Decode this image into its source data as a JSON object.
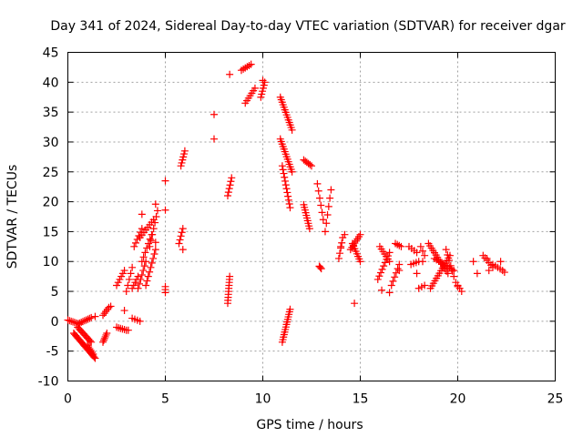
{
  "chart_data": {
    "type": "scatter",
    "title": "Day 341 of 2024, Sidereal Day-to-day VTEC variation (SDTVAR) for receiver dgar",
    "xlabel": "GPS time / hours",
    "ylabel": "SDTVAR / TECUs",
    "xlim": [
      0,
      25
    ],
    "ylim": [
      -10,
      45
    ],
    "xticks": [
      0,
      5,
      10,
      15,
      20,
      25
    ],
    "yticks": [
      -10,
      -5,
      0,
      5,
      10,
      15,
      20,
      25,
      30,
      35,
      40,
      45
    ],
    "grid": true,
    "marker": "+",
    "color": "#ff0000",
    "segments": [
      {
        "x": [
          0.0,
          0.6
        ],
        "y": [
          0.2,
          -0.5
        ],
        "n": 8
      },
      {
        "x": [
          0.3,
          1.4
        ],
        "y": [
          -2.0,
          -6.2
        ],
        "n": 22
      },
      {
        "x": [
          0.5,
          1.2
        ],
        "y": [
          -1.0,
          -3.5
        ],
        "n": 12
      },
      {
        "x": [
          0.6,
          1.2
        ],
        "y": [
          -0.3,
          0.6
        ],
        "n": 8
      },
      {
        "x": [
          1.0,
          1.3
        ],
        "y": [
          -4.0,
          -5.5
        ],
        "n": 6
      },
      {
        "x": [
          1.8,
          2.0
        ],
        "y": [
          -3.5,
          -2.0
        ],
        "n": 6
      },
      {
        "x": [
          1.8,
          2.1
        ],
        "y": [
          1.0,
          2.3
        ],
        "n": 5
      },
      {
        "x": [
          2.5,
          3.0
        ],
        "y": [
          -1.0,
          -1.5
        ],
        "n": 6
      },
      {
        "x": [
          2.5,
          2.9
        ],
        "y": [
          6.0,
          8.5
        ],
        "n": 6
      },
      {
        "x": [
          3.0,
          3.3
        ],
        "y": [
          5.0,
          9.0
        ],
        "n": 5
      },
      {
        "x": [
          3.3,
          3.7
        ],
        "y": [
          0.5,
          0.0
        ],
        "n": 4
      },
      {
        "x": [
          3.3,
          3.6
        ],
        "y": [
          5.5,
          7.5
        ],
        "n": 5
      },
      {
        "x": [
          3.4,
          3.8
        ],
        "y": [
          12.5,
          15.5
        ],
        "n": 6
      },
      {
        "x": [
          3.6,
          4.0
        ],
        "y": [
          5.5,
          10.0
        ],
        "n": 7
      },
      {
        "x": [
          3.7,
          4.4
        ],
        "y": [
          14.0,
          17.0
        ],
        "n": 8
      },
      {
        "x": [
          3.8,
          4.3
        ],
        "y": [
          10.0,
          14.5
        ],
        "n": 7
      },
      {
        "x": [
          4.0,
          4.5
        ],
        "y": [
          6.0,
          12.0
        ],
        "n": 9
      },
      {
        "x": [
          4.2,
          4.6
        ],
        "y": [
          12.5,
          18.5
        ],
        "n": 7
      },
      {
        "x": [
          5.0,
          5.0
        ],
        "y": [
          4.8,
          5.8
        ],
        "n": 3
      },
      {
        "x": [
          5.7,
          5.9
        ],
        "y": [
          13.0,
          15.5
        ],
        "n": 5
      },
      {
        "x": [
          5.8,
          6.0
        ],
        "y": [
          26.0,
          28.5
        ],
        "n": 6
      },
      {
        "x": [
          8.2,
          8.3
        ],
        "y": [
          3.0,
          7.5
        ],
        "n": 10
      },
      {
        "x": [
          8.2,
          8.4
        ],
        "y": [
          21.0,
          24.0
        ],
        "n": 6
      },
      {
        "x": [
          8.9,
          9.4
        ],
        "y": [
          42.0,
          43.0
        ],
        "n": 6
      },
      {
        "x": [
          9.1,
          9.6
        ],
        "y": [
          36.5,
          39.0
        ],
        "n": 7
      },
      {
        "x": [
          9.9,
          10.1
        ],
        "y": [
          37.5,
          40.0
        ],
        "n": 6
      },
      {
        "x": [
          10.9,
          11.5
        ],
        "y": [
          37.5,
          32.0
        ],
        "n": 14
      },
      {
        "x": [
          10.9,
          11.5
        ],
        "y": [
          30.5,
          25.0
        ],
        "n": 14
      },
      {
        "x": [
          11.0,
          11.4
        ],
        "y": [
          26.0,
          19.0
        ],
        "n": 12
      },
      {
        "x": [
          11.0,
          11.4
        ],
        "y": [
          -3.5,
          2.0
        ],
        "n": 14
      },
      {
        "x": [
          12.1,
          12.5
        ],
        "y": [
          27.0,
          26.0
        ],
        "n": 6
      },
      {
        "x": [
          12.1,
          12.4
        ],
        "y": [
          19.5,
          15.5
        ],
        "n": 10
      },
      {
        "x": [
          12.9,
          13.0
        ],
        "y": [
          9.2,
          8.8
        ],
        "n": 3
      },
      {
        "x": [
          12.8,
          13.1
        ],
        "y": [
          23.0,
          17.0
        ],
        "n": 6
      },
      {
        "x": [
          13.2,
          13.5
        ],
        "y": [
          15.0,
          22.0
        ],
        "n": 6
      },
      {
        "x": [
          13.9,
          14.1
        ],
        "y": [
          10.5,
          14.0
        ],
        "n": 5
      },
      {
        "x": [
          14.5,
          15.0
        ],
        "y": [
          12.0,
          14.5
        ],
        "n": 8
      },
      {
        "x": [
          14.6,
          15.0
        ],
        "y": [
          13.0,
          10.0
        ],
        "n": 8
      },
      {
        "x": [
          15.9,
          16.5
        ],
        "y": [
          7.0,
          11.5
        ],
        "n": 9
      },
      {
        "x": [
          16.0,
          16.5
        ],
        "y": [
          12.5,
          10.0
        ],
        "n": 7
      },
      {
        "x": [
          16.6,
          17.0
        ],
        "y": [
          6.0,
          9.5
        ],
        "n": 6
      },
      {
        "x": [
          16.8,
          17.1
        ],
        "y": [
          13.0,
          12.5
        ],
        "n": 4
      },
      {
        "x": [
          17.5,
          17.9
        ],
        "y": [
          12.5,
          11.5
        ],
        "n": 4
      },
      {
        "x": [
          17.6,
          18.0
        ],
        "y": [
          9.5,
          10.0
        ],
        "n": 4
      },
      {
        "x": [
          18.0,
          18.3
        ],
        "y": [
          5.5,
          6.0
        ],
        "n": 3
      },
      {
        "x": [
          18.1,
          18.3
        ],
        "y": [
          12.5,
          11.0
        ],
        "n": 3
      },
      {
        "x": [
          18.5,
          19.5
        ],
        "y": [
          13.0,
          8.0
        ],
        "n": 14
      },
      {
        "x": [
          18.6,
          19.6
        ],
        "y": [
          5.5,
          11.0
        ],
        "n": 14
      },
      {
        "x": [
          18.8,
          19.8
        ],
        "y": [
          10.5,
          8.5
        ],
        "n": 10
      },
      {
        "x": [
          19.4,
          19.8
        ],
        "y": [
          12.0,
          7.5
        ],
        "n": 6
      },
      {
        "x": [
          19.9,
          20.2
        ],
        "y": [
          6.5,
          5.0
        ],
        "n": 4
      },
      {
        "x": [
          21.3,
          21.8
        ],
        "y": [
          11.0,
          9.0
        ],
        "n": 6
      },
      {
        "x": [
          21.8,
          22.3
        ],
        "y": [
          9.5,
          8.5
        ],
        "n": 5
      }
    ],
    "points": [
      [
        1.4,
        0.8
      ],
      [
        2.2,
        2.5
      ],
      [
        2.9,
        1.8
      ],
      [
        3.1,
        -1.5
      ],
      [
        3.8,
        17.9
      ],
      [
        4.5,
        19.6
      ],
      [
        4.5,
        13.2
      ],
      [
        5.0,
        23.5
      ],
      [
        5.0,
        18.6
      ],
      [
        5.9,
        12.0
      ],
      [
        7.5,
        34.6
      ],
      [
        7.5,
        30.5
      ],
      [
        8.3,
        41.3
      ],
      [
        10.0,
        40.3
      ],
      [
        12.9,
        9.2
      ],
      [
        14.0,
        12.5
      ],
      [
        14.7,
        3.0
      ],
      [
        14.2,
        14.5
      ],
      [
        16.1,
        5.2
      ],
      [
        16.5,
        4.8
      ],
      [
        17.0,
        8.5
      ],
      [
        17.9,
        8.0
      ],
      [
        18.2,
        10.0
      ],
      [
        20.0,
        5.8
      ],
      [
        20.8,
        10.0
      ],
      [
        21.0,
        8.0
      ],
      [
        21.5,
        10.5
      ],
      [
        21.6,
        8.5
      ],
      [
        22.4,
        8.2
      ],
      [
        22.2,
        10.0
      ]
    ]
  }
}
